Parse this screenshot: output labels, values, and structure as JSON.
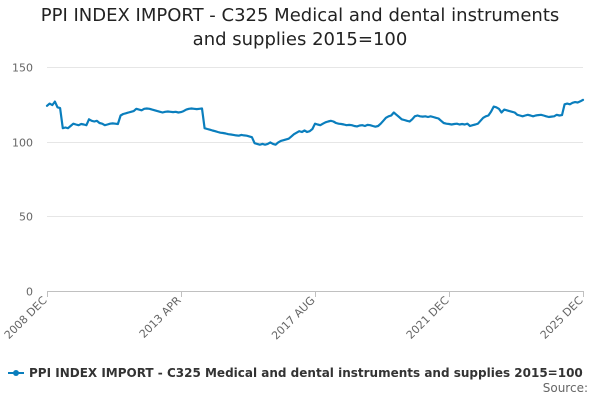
{
  "title_line1": "PPI INDEX IMPORT - C325 Medical and dental instruments",
  "title_line2": "and supplies 2015=100",
  "legend_label": "PPI INDEX IMPORT - C325 Medical and dental instruments and supplies 2015=100",
  "source_label": "Source:",
  "colors": {
    "series": "#0a7ebd",
    "grid": "#e6e6e6",
    "axis": "#c0c0c0",
    "label": "#666666"
  },
  "chart_data": {
    "type": "line",
    "title": "PPI INDEX IMPORT - C325 Medical and dental instruments and supplies 2015=100",
    "xlabel": "",
    "ylabel": "",
    "ylim": [
      0,
      150
    ],
    "yticks": [
      0,
      50,
      100,
      150
    ],
    "xlim": [
      "2008-12",
      "2025-12"
    ],
    "xtick_labels": [
      "2008 DEC",
      "2013 APR",
      "2017 AUG",
      "2021 DEC",
      "2025 DEC"
    ],
    "grid": true,
    "legend_position": "bottom",
    "series": [
      {
        "name": "PPI INDEX IMPORT - C325 Medical and dental instruments and supplies 2015=100",
        "x": [
          "2008-12",
          "2009-01",
          "2009-02",
          "2009-03",
          "2009-04",
          "2009-05",
          "2009-06",
          "2009-07",
          "2009-08",
          "2009-09",
          "2009-10",
          "2009-11",
          "2009-12",
          "2010-01",
          "2010-02",
          "2010-03",
          "2010-04",
          "2010-05",
          "2010-06",
          "2010-07",
          "2010-08",
          "2010-09",
          "2010-10",
          "2010-11",
          "2010-12",
          "2011-01",
          "2011-02",
          "2011-03",
          "2011-04",
          "2011-05",
          "2011-06",
          "2011-07",
          "2011-08",
          "2011-09",
          "2011-10",
          "2011-11",
          "2011-12",
          "2012-01",
          "2012-02",
          "2012-03",
          "2012-04",
          "2012-05",
          "2012-06",
          "2012-07",
          "2012-08",
          "2012-09",
          "2012-10",
          "2012-11",
          "2012-12",
          "2013-01",
          "2013-02",
          "2013-03",
          "2013-04",
          "2013-05",
          "2013-06",
          "2013-07",
          "2013-08",
          "2013-09",
          "2013-10",
          "2013-11",
          "2013-12",
          "2014-01",
          "2014-02",
          "2014-03",
          "2014-04",
          "2014-05",
          "2014-06",
          "2014-07",
          "2014-08",
          "2014-09",
          "2014-10",
          "2014-11",
          "2014-12",
          "2015-01",
          "2015-02",
          "2015-03",
          "2015-04",
          "2015-05",
          "2015-06",
          "2015-07",
          "2015-08",
          "2015-09",
          "2015-10",
          "2015-11",
          "2015-12",
          "2016-01",
          "2016-02",
          "2016-03",
          "2016-04",
          "2016-05",
          "2016-06",
          "2016-07",
          "2016-08",
          "2016-09",
          "2016-10",
          "2016-11",
          "2016-12",
          "2017-01",
          "2017-02",
          "2017-03",
          "2017-04",
          "2017-05",
          "2017-06",
          "2017-07",
          "2017-08",
          "2017-09",
          "2017-10",
          "2017-11",
          "2017-12",
          "2018-01",
          "2018-02",
          "2018-03",
          "2018-04",
          "2018-05",
          "2018-06",
          "2018-07",
          "2018-08",
          "2018-09",
          "2018-10",
          "2018-11",
          "2018-12",
          "2019-01",
          "2019-02",
          "2019-03",
          "2019-04",
          "2019-05",
          "2019-06",
          "2019-07",
          "2019-08",
          "2019-09",
          "2019-10",
          "2019-11",
          "2019-12",
          "2020-01",
          "2020-02",
          "2020-03",
          "2020-04",
          "2020-05",
          "2020-06",
          "2020-07",
          "2020-08",
          "2020-09",
          "2020-10",
          "2020-11",
          "2020-12",
          "2021-01",
          "2021-02",
          "2021-03",
          "2021-04",
          "2021-05",
          "2021-06",
          "2021-07",
          "2021-08",
          "2021-09",
          "2021-10",
          "2021-11",
          "2021-12",
          "2022-01",
          "2022-02",
          "2022-03",
          "2022-04",
          "2022-05",
          "2022-06",
          "2022-07",
          "2022-08",
          "2022-09",
          "2022-10",
          "2022-11",
          "2022-12",
          "2023-01",
          "2023-02",
          "2023-03",
          "2023-04",
          "2023-05",
          "2023-06",
          "2023-07",
          "2023-08",
          "2023-09",
          "2023-10",
          "2023-11",
          "2023-12",
          "2024-01",
          "2024-02",
          "2024-03",
          "2024-04",
          "2024-05",
          "2024-06",
          "2024-07",
          "2024-08",
          "2024-09",
          "2024-10",
          "2024-11",
          "2024-12",
          "2025-01",
          "2025-02",
          "2025-03",
          "2025-04",
          "2025-05",
          "2025-06",
          "2025-07",
          "2025-08",
          "2025-09",
          "2025-10",
          "2025-11",
          "2025-12"
        ],
        "values": [
          124.0,
          125.5,
          124.5,
          126.8,
          123.0,
          122.5,
          109.0,
          109.5,
          109.0,
          110.5,
          112.0,
          111.5,
          111.0,
          111.8,
          111.5,
          111.0,
          115.0,
          114.0,
          113.5,
          114.0,
          112.5,
          112.0,
          111.0,
          111.5,
          112.0,
          112.2,
          112.0,
          111.8,
          117.5,
          118.5,
          119.0,
          119.5,
          120.0,
          120.5,
          122.0,
          121.5,
          121.0,
          122.0,
          122.2,
          122.0,
          121.5,
          121.0,
          120.5,
          120.0,
          119.5,
          120.0,
          120.2,
          120.0,
          119.8,
          120.0,
          119.5,
          119.8,
          120.5,
          121.5,
          122.0,
          122.2,
          122.0,
          121.8,
          122.0,
          122.2,
          109.0,
          108.5,
          108.0,
          107.5,
          107.0,
          106.5,
          106.0,
          105.8,
          105.5,
          105.0,
          104.8,
          104.5,
          104.2,
          104.0,
          104.5,
          104.2,
          104.0,
          103.5,
          103.0,
          99.0,
          98.5,
          98.0,
          98.5,
          98.0,
          98.5,
          99.5,
          98.5,
          98.0,
          99.5,
          100.5,
          101.0,
          101.5,
          102.0,
          103.5,
          105.0,
          106.0,
          107.0,
          106.5,
          107.5,
          106.5,
          107.0,
          108.5,
          112.0,
          111.5,
          111.0,
          112.0,
          113.0,
          113.5,
          114.0,
          113.5,
          112.5,
          112.0,
          111.8,
          111.5,
          111.0,
          111.2,
          111.0,
          110.5,
          110.2,
          110.8,
          111.0,
          110.5,
          111.2,
          111.0,
          110.5,
          110.0,
          110.5,
          112.0,
          114.0,
          116.0,
          117.0,
          117.5,
          119.5,
          118.0,
          116.5,
          115.0,
          114.5,
          114.0,
          113.5,
          115.0,
          117.0,
          117.5,
          117.0,
          116.8,
          117.0,
          116.5,
          117.0,
          116.5,
          116.0,
          115.5,
          114.0,
          112.5,
          112.0,
          111.8,
          111.5,
          111.8,
          112.0,
          111.5,
          111.8,
          111.5,
          112.0,
          110.5,
          111.0,
          111.5,
          112.0,
          114.0,
          116.0,
          117.0,
          117.5,
          120.0,
          123.5,
          123.0,
          122.0,
          119.5,
          121.5,
          121.0,
          120.5,
          120.0,
          119.5,
          118.0,
          117.5,
          117.0,
          117.5,
          118.0,
          117.5,
          117.0,
          117.5,
          117.8,
          118.0,
          117.5,
          117.0,
          116.5,
          116.8,
          117.0,
          118.0,
          117.5,
          117.8,
          125.0,
          125.5,
          125.0,
          126.0,
          126.5,
          126.2,
          127.0,
          128.0
        ]
      }
    ]
  }
}
